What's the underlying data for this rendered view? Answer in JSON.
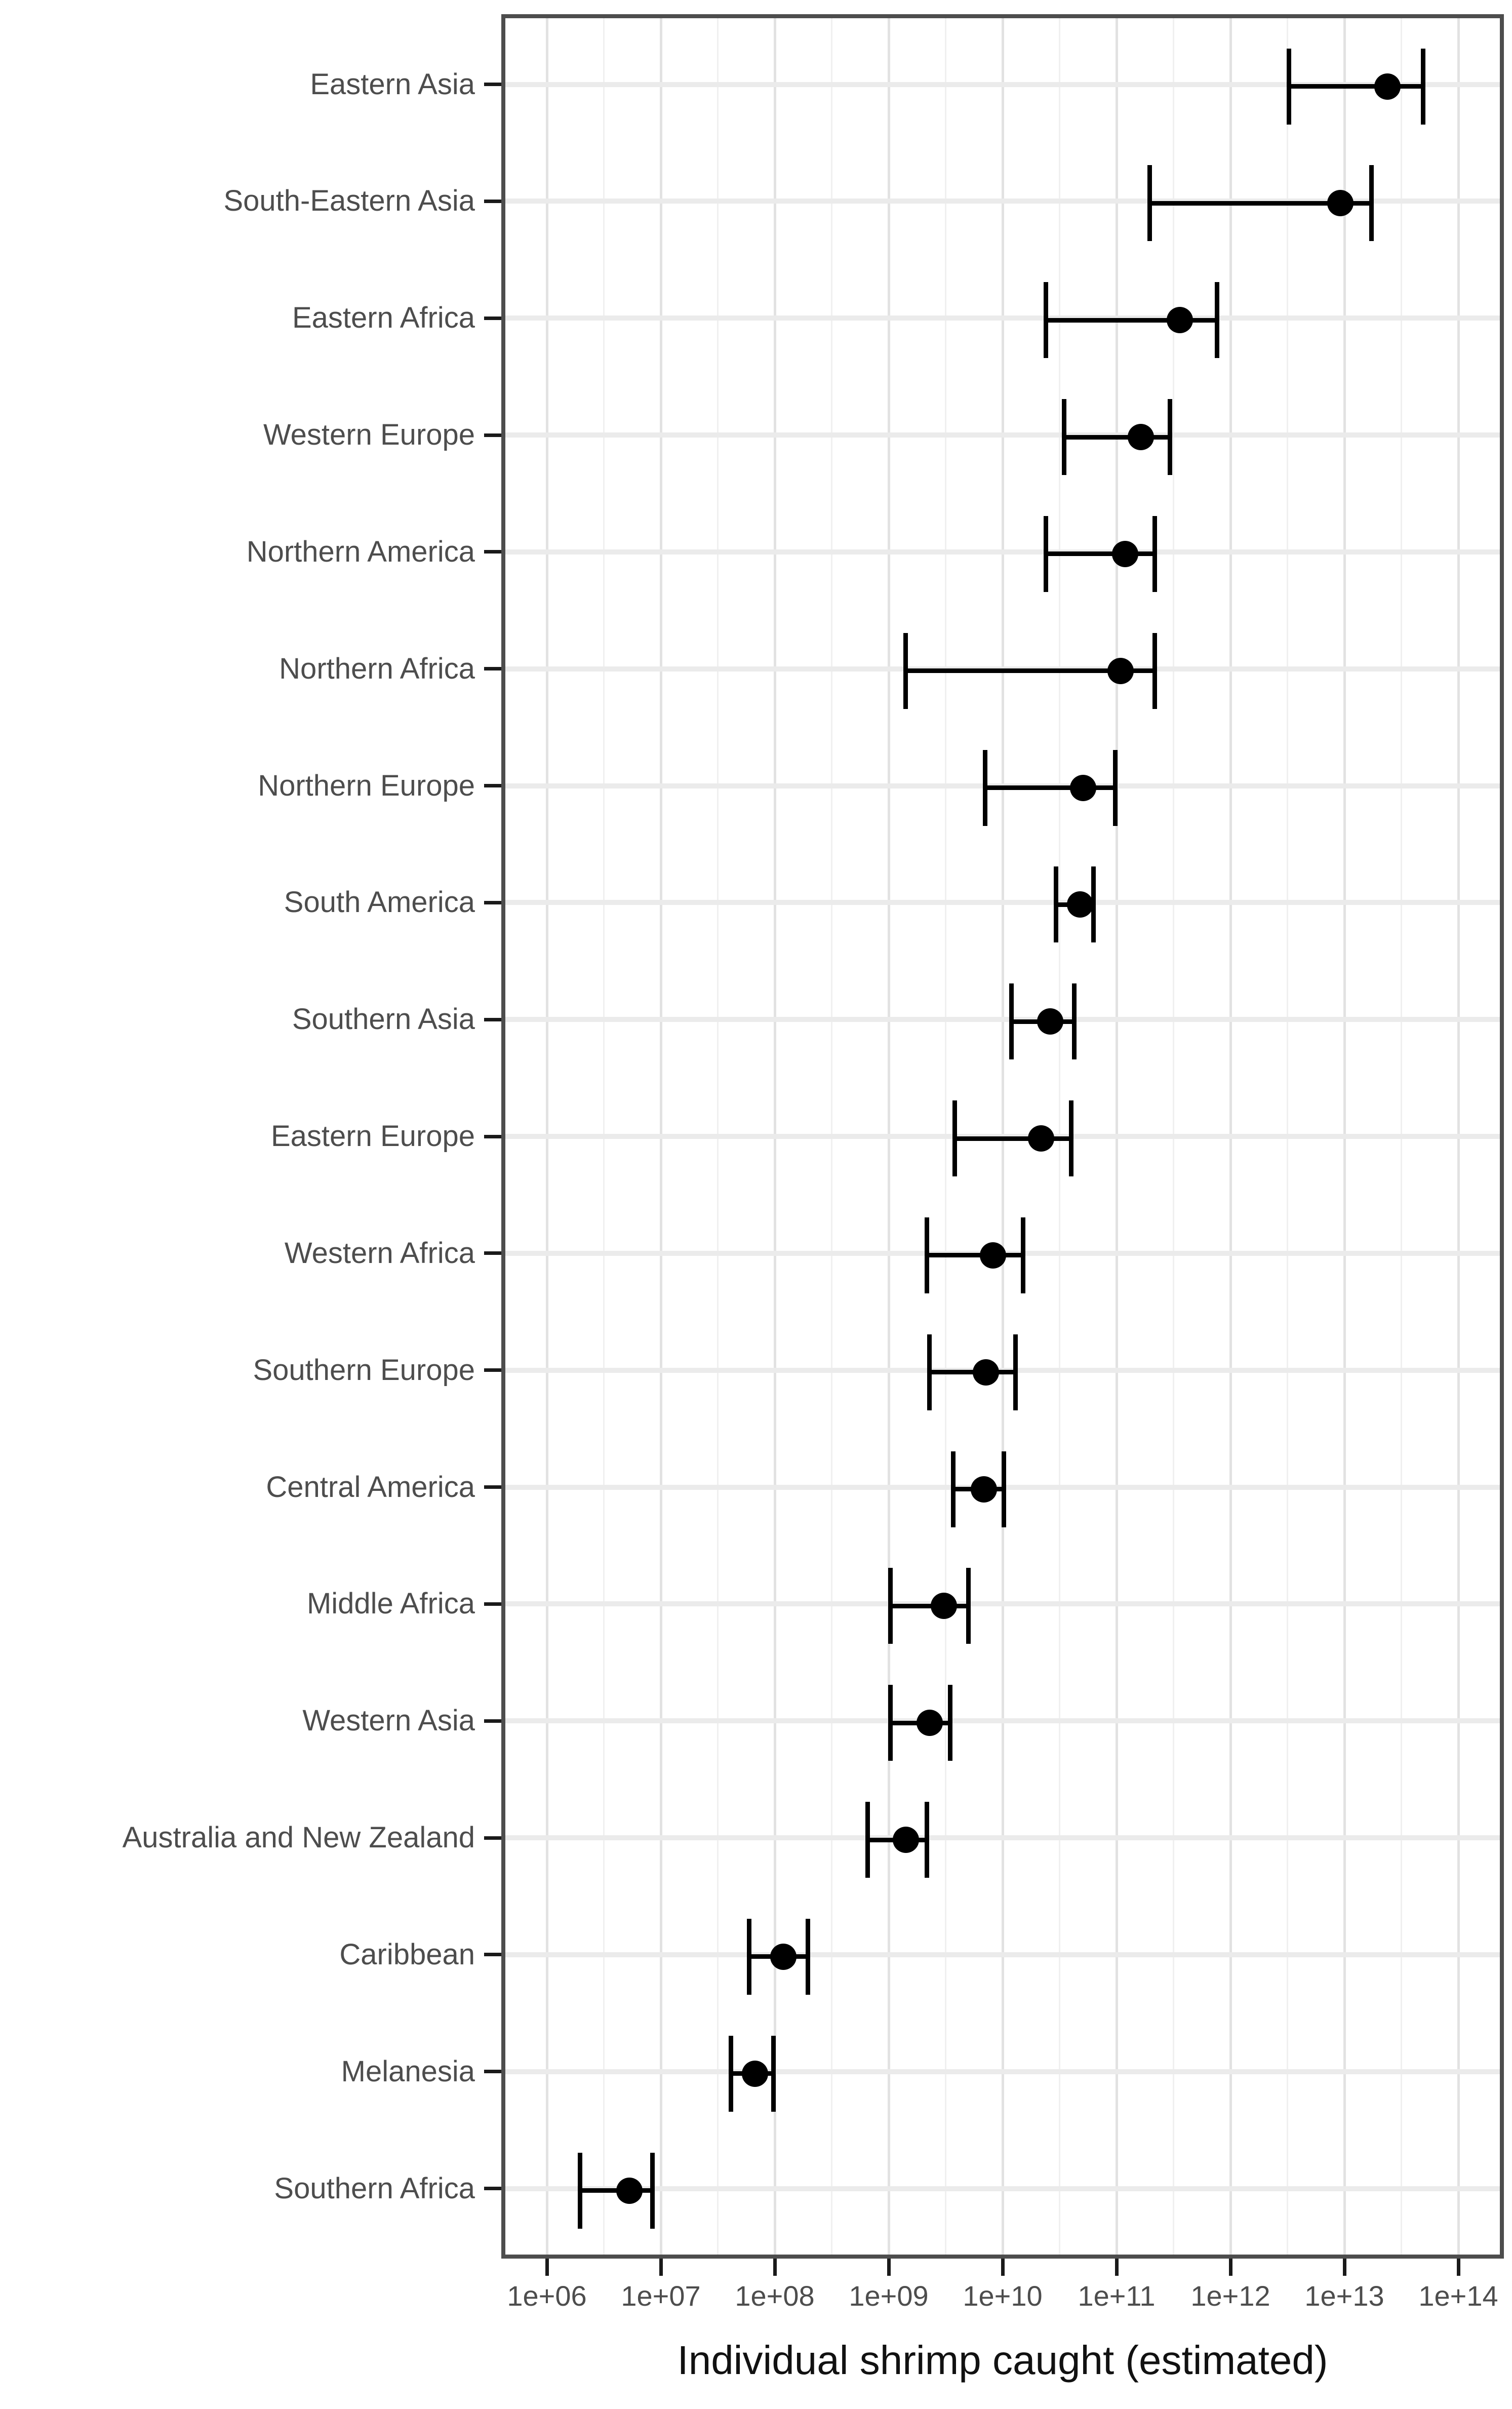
{
  "chart_data": {
    "type": "scatter",
    "subtype": "pointrange-with-errorbars",
    "title": "",
    "xlabel": "Individual shrimp caught (estimated)",
    "ylabel": "",
    "x_axis": {
      "scale": "log10",
      "tick_labels": [
        "1e+06",
        "1e+07",
        "1e+08",
        "1e+09",
        "1e+10",
        "1e+11",
        "1e+12",
        "1e+13",
        "1e+14"
      ],
      "tick_values": [
        1000000.0,
        10000000.0,
        100000000.0,
        1000000000.0,
        10000000000.0,
        100000000000.0,
        1000000000000.0,
        10000000000000.0,
        100000000000000.0
      ],
      "domain_log10": [
        5.6,
        14.4
      ],
      "minor_gridlines_log10": [
        6.5,
        7.5,
        8.5,
        9.5,
        10.5,
        11.5,
        12.5,
        13.5
      ],
      "grid": true
    },
    "legend": "none",
    "points": [
      {
        "category": "Eastern Asia",
        "low": 3000000000000.0,
        "mid": 22000000000000.0,
        "high": 45000000000000.0
      },
      {
        "category": "South-Eastern Asia",
        "low": 180000000000.0,
        "mid": 8500000000000.0,
        "high": 16000000000000.0
      },
      {
        "category": "Eastern Africa",
        "low": 22000000000.0,
        "mid": 330000000000.0,
        "high": 700000000000.0
      },
      {
        "category": "Western Europe",
        "low": 32000000000.0,
        "mid": 150000000000.0,
        "high": 270000000000.0
      },
      {
        "category": "Northern America",
        "low": 22000000000.0,
        "mid": 110000000000.0,
        "high": 200000000000.0
      },
      {
        "category": "Northern Africa",
        "low": 1300000000.0,
        "mid": 100000000000.0,
        "high": 200000000000.0
      },
      {
        "category": "Northern Europe",
        "low": 6500000000.0,
        "mid": 47000000000.0,
        "high": 90000000000.0
      },
      {
        "category": "South America",
        "low": 27000000000.0,
        "mid": 44000000000.0,
        "high": 58000000000.0
      },
      {
        "category": "Southern Asia",
        "low": 11000000000.0,
        "mid": 24000000000.0,
        "high": 39000000000.0
      },
      {
        "category": "Eastern Europe",
        "low": 3500000000.0,
        "mid": 20000000000.0,
        "high": 37000000000.0
      },
      {
        "category": "Western Africa",
        "low": 2000000000.0,
        "mid": 7600000000.0,
        "high": 14000000000.0
      },
      {
        "category": "Southern Europe",
        "low": 2100000000.0,
        "mid": 6600000000.0,
        "high": 12000000000.0
      },
      {
        "category": "Central America",
        "low": 3400000000.0,
        "mid": 6300000000.0,
        "high": 9400000000.0
      },
      {
        "category": "Middle Africa",
        "low": 950000000.0,
        "mid": 2800000000.0,
        "high": 4600000000.0
      },
      {
        "category": "Western Asia",
        "low": 950000000.0,
        "mid": 2100000000.0,
        "high": 3200000000.0
      },
      {
        "category": "Australia and New Zealand",
        "low": 600000000.0,
        "mid": 1300000000.0,
        "high": 2000000000.0
      },
      {
        "category": "Caribbean",
        "low": 55000000.0,
        "mid": 110000000.0,
        "high": 180000000.0
      },
      {
        "category": "Melanesia",
        "low": 38000000.0,
        "mid": 62000000.0,
        "high": 90000000.0
      },
      {
        "category": "Southern Africa",
        "low": 1800000.0,
        "mid": 4900000.0,
        "high": 7800000.0
      }
    ],
    "colors": {
      "point": "#000000",
      "errorbar": "#000000",
      "grid_major": "#e2e2e2",
      "grid_minor": "#f0f0f0",
      "row_gridline": "#ebebeb",
      "panel_border": "#4d4d4d",
      "axis_text": "#4d4d4d",
      "axis_title": "#111111",
      "background": "#ffffff"
    }
  }
}
